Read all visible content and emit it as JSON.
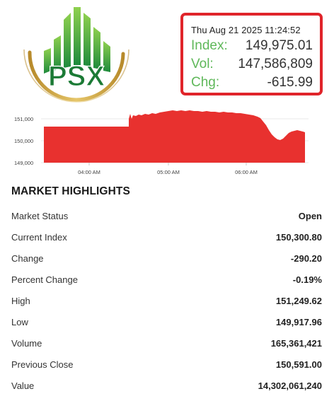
{
  "logo": {
    "text": "PSX",
    "colors": {
      "green": "#1e8a3c",
      "gold": "#c9a441"
    }
  },
  "ticker": {
    "timestamp": "Thu Aug 21 2025 11:24:52",
    "index_label": "Index:",
    "index_value": "149,975.01",
    "vol_label": "Vol:",
    "vol_value": "147,586,809",
    "chg_label": "Chg:",
    "chg_value": "-615.99",
    "colors": {
      "border": "#e0242a",
      "label": "#5fb85a"
    }
  },
  "chart_data": {
    "type": "area",
    "y_ticks": [
      "151,000",
      "150,000",
      "149,000"
    ],
    "x_ticks": [
      "04:00 AM",
      "05:00 AM",
      "06:00 AM"
    ],
    "ylim": [
      149000,
      151400
    ],
    "fill_color": "#e8312f"
  },
  "highlights": {
    "title": "MARKET HIGHLIGHTS",
    "rows": [
      {
        "label": "Market Status",
        "value": "Open"
      },
      {
        "label": "Current Index",
        "value": "150,300.80"
      },
      {
        "label": "Change",
        "value": "-290.20"
      },
      {
        "label": "Percent Change",
        "value": "-0.19%"
      },
      {
        "label": "High",
        "value": "151,249.62"
      },
      {
        "label": "Low",
        "value": "149,917.96"
      },
      {
        "label": "Volume",
        "value": "165,361,421"
      },
      {
        "label": "Previous Close",
        "value": "150,591.00"
      },
      {
        "label": "Value",
        "value": "14,302,061,240"
      }
    ]
  }
}
